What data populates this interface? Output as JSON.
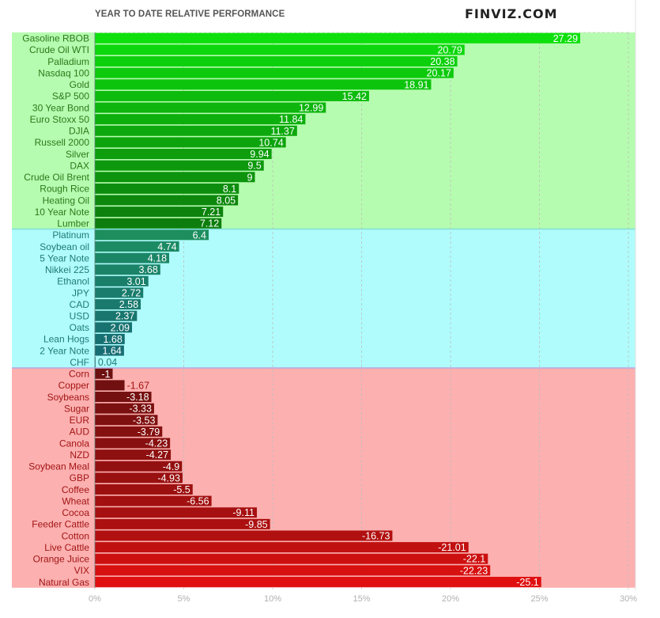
{
  "header": {
    "title": "YEAR TO DATE RELATIVE PERFORMANCE",
    "brand": "FINVIZ.COM"
  },
  "chart_data": {
    "type": "bar",
    "orientation": "horizontal",
    "title": "YEAR TO DATE RELATIVE PERFORMANCE",
    "xlim": [
      0,
      30
    ],
    "x_ticks": [
      "0%",
      "5%",
      "10%",
      "15%",
      "20%",
      "25%",
      "30%"
    ],
    "grid": true,
    "zones": [
      {
        "name": "top",
        "color": "#b6fcb0"
      },
      {
        "name": "middle",
        "color": "#b0fcfc"
      },
      {
        "name": "bottom",
        "color": "#fcb0b0"
      }
    ],
    "categories": [
      "Gasoline RBOB",
      "Crude Oil WTI",
      "Palladium",
      "Nasdaq 100",
      "Gold",
      "S&P 500",
      "30 Year Bond",
      "Euro Stoxx 50",
      "DJIA",
      "Russell 2000",
      "Silver",
      "DAX",
      "Crude Oil Brent",
      "Rough Rice",
      "Heating Oil",
      "10 Year Note",
      "Lumber",
      "Platinum",
      "Soybean oil",
      "5 Year Note",
      "Nikkei 225",
      "Ethanol",
      "JPY",
      "CAD",
      "USD",
      "Oats",
      "Lean Hogs",
      "2 Year Note",
      "CHF",
      "Corn",
      "Copper",
      "Soybeans",
      "Sugar",
      "EUR",
      "AUD",
      "Canola",
      "NZD",
      "Soybean Meal",
      "GBP",
      "Coffee",
      "Wheat",
      "Cocoa",
      "Feeder Cattle",
      "Cotton",
      "Live Cattle",
      "Orange Juice",
      "VIX",
      "Natural Gas"
    ],
    "values": [
      27.29,
      20.79,
      20.38,
      20.17,
      18.91,
      15.42,
      12.99,
      11.84,
      11.37,
      10.74,
      9.94,
      9.5,
      9,
      8.1,
      8.05,
      7.21,
      7.12,
      6.4,
      4.74,
      4.18,
      3.68,
      3.01,
      2.72,
      2.58,
      2.37,
      2.09,
      1.68,
      1.64,
      0.04,
      -1,
      -1.67,
      -3.18,
      -3.33,
      -3.53,
      -3.79,
      -4.23,
      -4.27,
      -4.9,
      -4.93,
      -5.5,
      -6.56,
      -9.11,
      -9.85,
      -16.73,
      -21.01,
      -22.1,
      -22.23,
      -25.1
    ],
    "value_labels": [
      "27.29",
      "20.79",
      "20.38",
      "20.17",
      "18.91",
      "15.42",
      "12.99",
      "11.84",
      "11.37",
      "10.74",
      "9.94",
      "9.5",
      "9",
      "8.1",
      "8.05",
      "7.21",
      "7.12",
      "6.4",
      "4.74",
      "4.18",
      "3.68",
      "3.01",
      "2.72",
      "2.58",
      "2.37",
      "2.09",
      "1.68",
      "1.64",
      "0.04",
      "-1",
      "-1.67",
      "-3.18",
      "-3.33",
      "-3.53",
      "-3.79",
      "-4.23",
      "-4.27",
      "-4.9",
      "-4.93",
      "-5.5",
      "-6.56",
      "-9.11",
      "-9.85",
      "-16.73",
      "-21.01",
      "-22.1",
      "-22.23",
      "-25.1"
    ],
    "bar_colors": [
      "#0de00d",
      "#0dd70d",
      "#0dd00d",
      "#0dca0d",
      "#0dc40d",
      "#0dbb0d",
      "#0db50d",
      "#0daf0d",
      "#0da80d",
      "#0da30d",
      "#0d9d0d",
      "#0d980d",
      "#0d930d",
      "#0d8d0d",
      "#0d880d",
      "#0d830d",
      "#0d7e0d",
      "#1d8e5e",
      "#1c8b64",
      "#1b8666",
      "#1b8368",
      "#1a7f6a",
      "#1a7c6c",
      "#19796d",
      "#18766e",
      "#187370",
      "#177072",
      "#166d73",
      "#156a75",
      "#6d1010",
      "#711010",
      "#751010",
      "#7a1010",
      "#7f1010",
      "#841010",
      "#891010",
      "#8e1010",
      "#931010",
      "#981010",
      "#9d1010",
      "#a21010",
      "#a71010",
      "#ac1010",
      "#b11010",
      "#c11010",
      "#cc1010",
      "#d71010",
      "#e01010"
    ],
    "label_colors": [
      "#2a7a1a",
      "#2a7a1a",
      "#2a7a1a",
      "#2a7a1a",
      "#2a7a1a",
      "#2a7a1a",
      "#2a7a1a",
      "#2a7a1a",
      "#2a7a1a",
      "#2a7a1a",
      "#2a7a1a",
      "#2a7a1a",
      "#2a7a1a",
      "#2a7a1a",
      "#2a7a1a",
      "#2a7a1a",
      "#2a7a1a",
      "#1e7a78",
      "#1e7a78",
      "#1e7a78",
      "#1e7a78",
      "#1e7a78",
      "#1e7a78",
      "#1e7a78",
      "#1e7a78",
      "#1e7a78",
      "#1e7a78",
      "#1e7a78",
      "#1e7a78",
      "#a31515",
      "#a31515",
      "#a31515",
      "#a31515",
      "#a31515",
      "#a31515",
      "#a31515",
      "#a31515",
      "#a31515",
      "#a31515",
      "#a31515",
      "#a31515",
      "#a31515",
      "#a31515",
      "#a31515",
      "#a31515",
      "#a31515",
      "#a31515",
      "#a31515"
    ]
  }
}
